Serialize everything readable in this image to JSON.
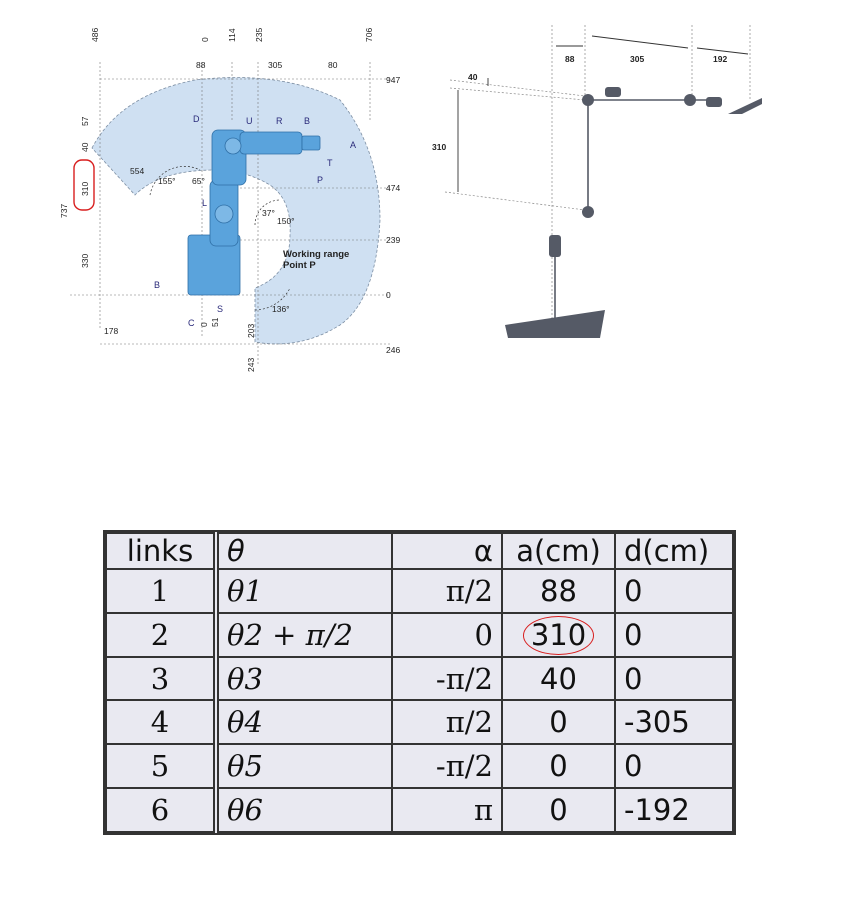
{
  "robot_diagram": {
    "dims_top": [
      "486",
      "0",
      "114",
      "235",
      "706"
    ],
    "dims_row": [
      "88",
      "305",
      "80"
    ],
    "dims_right": [
      "947",
      "474",
      "239",
      "0",
      "246"
    ],
    "dims_left": [
      "57",
      "40",
      "310",
      "737",
      "330",
      "178"
    ],
    "dims_misc": [
      "554",
      "0",
      "51",
      "203",
      "243"
    ],
    "angles": [
      "155°",
      "65°",
      "37°",
      "150°",
      "136°"
    ],
    "axis_labels": [
      "D",
      "U",
      "R",
      "B",
      "A",
      "T",
      "P",
      "L",
      "B",
      "C",
      "S"
    ],
    "working_range": "Working range",
    "point_p": "Point P"
  },
  "kinematic_sketch": {
    "labels": [
      "88",
      "305",
      "192",
      "40",
      "310"
    ]
  },
  "dh_table": {
    "headers": [
      "links",
      "θ",
      "α",
      "a(cm)",
      "d(cm)"
    ],
    "rows": [
      [
        "1",
        "θ1",
        "π/2",
        "88",
        "0"
      ],
      [
        "2",
        "θ2 + π/2",
        "0",
        "310",
        "0"
      ],
      [
        "3",
        "θ3",
        "-π/2",
        "40",
        "0"
      ],
      [
        "4",
        "θ4",
        "π/2",
        "0",
        "-305"
      ],
      [
        "5",
        "θ5",
        "-π/2",
        "0",
        "0"
      ],
      [
        "6",
        "θ6",
        "π",
        "0",
        "-192"
      ]
    ]
  },
  "colors": {
    "highlight": "#d81e1e",
    "robot": "#5aa3dc",
    "range": "#cfe0f2",
    "sketch": "#555a66"
  }
}
